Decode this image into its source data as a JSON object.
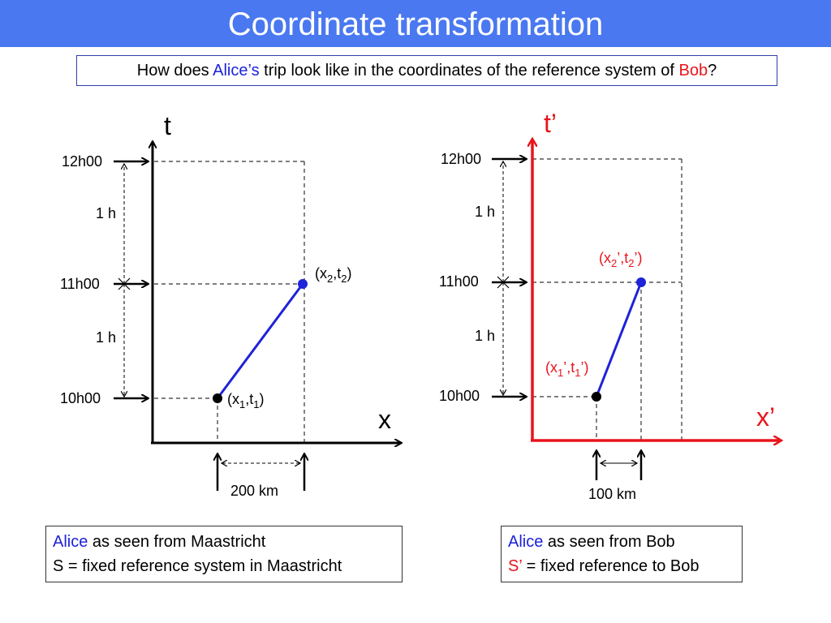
{
  "title": "Coordinate transformation",
  "question": {
    "prefix": "How does ",
    "alice": "Alice’s",
    "middle": " trip look like in the coordinates of the reference system of ",
    "bob": "Bob",
    "suffix": "?"
  },
  "colors": {
    "title_bar": "#4a78f0",
    "blue": "#1e22d8",
    "red": "#e8141c"
  },
  "left_diagram": {
    "t_axis": "t",
    "x_axis": "x",
    "time_labels": [
      "12h00",
      "11h00",
      "10h00"
    ],
    "interval_label_upper": "1 h",
    "interval_label_lower": "1 h",
    "distance_label": "200 km",
    "point1": {
      "base": "(x",
      "sub_x": "1",
      "mid": ",t",
      "sub_t": "1",
      "end": ")"
    },
    "point2": {
      "base": "(x",
      "sub_x": "2",
      "mid": ",t",
      "sub_t": "2",
      "end": ")"
    }
  },
  "right_diagram": {
    "t_axis": "t’",
    "x_axis": "x’",
    "time_labels": [
      "12h00",
      "11h00",
      "10h00"
    ],
    "interval_label_upper": "1 h",
    "interval_label_lower": "1 h",
    "distance_label": "100 km",
    "point1": {
      "base": "(x",
      "sub_x": "1",
      "mid": "’,t",
      "sub_t": "1",
      "end": "’)"
    },
    "point2": {
      "base": "(x",
      "sub_x": "2",
      "mid": "’,t",
      "sub_t": "2",
      "end": "’)"
    }
  },
  "caption_left": {
    "alice": "Alice",
    "line1_rest": " as seen from Maastricht",
    "line2": "S = fixed reference system in Maastricht"
  },
  "caption_right": {
    "alice": "Alice",
    "line1_rest": " as seen from Bob",
    "line2_symbol": "S’",
    "line2_rest": " = fixed reference to Bob"
  }
}
